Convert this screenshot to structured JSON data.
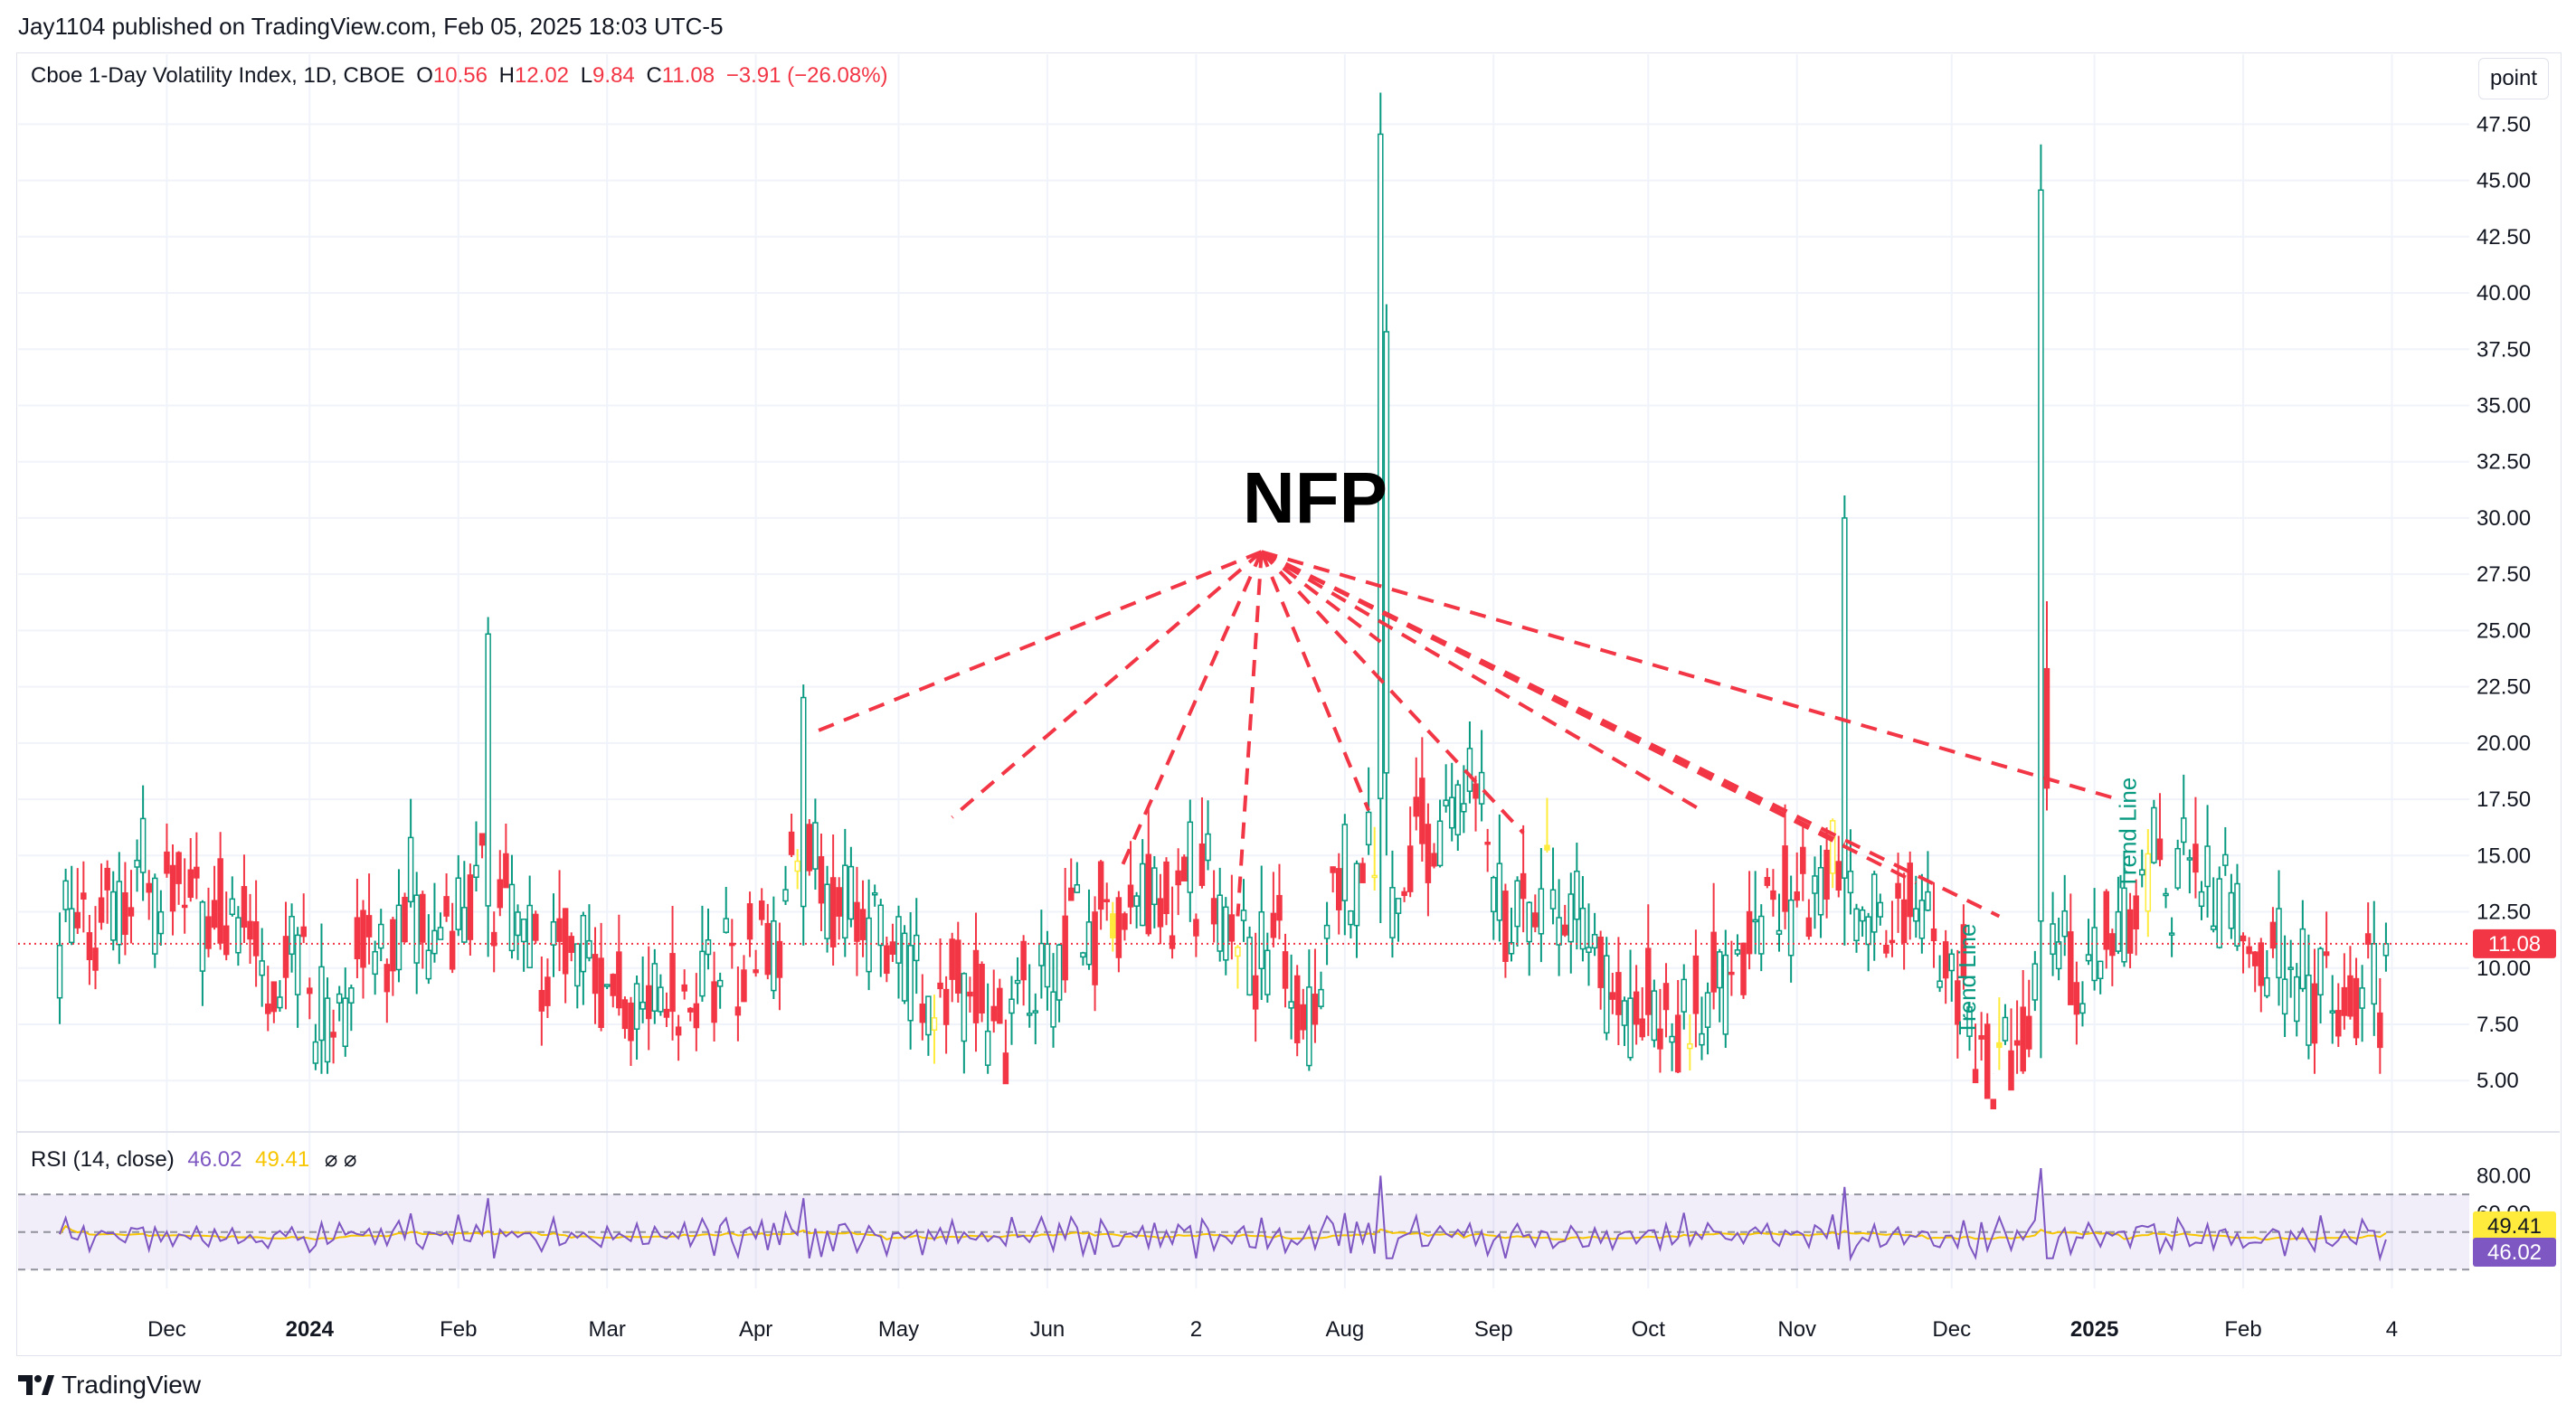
{
  "header": {
    "publisher": "Jay1104 published on TradingView.com, Feb 05, 2025 18:03 UTC-5"
  },
  "legend": {
    "symbol": "Cboe 1-Day Volatility Index, 1D, CBOE",
    "o_label": "O",
    "o_value": "10.56",
    "h_label": "H",
    "h_value": "12.02",
    "l_label": "L",
    "l_value": "9.84",
    "c_label": "C",
    "c_value": "11.08",
    "change": "−3.91 (−26.08%)"
  },
  "unit_button": "point",
  "rsi_legend": {
    "title": "RSI (14, close)",
    "rsi_value": "46.02",
    "ma_value": "49.41",
    "glyphs": "⌀ ⌀"
  },
  "footer": {
    "brand": "TradingView"
  },
  "colors": {
    "up": "#089981",
    "down": "#f23645",
    "highlight": "#ffeb3b",
    "annotation": "#f23645",
    "rsi": "#7e57c2",
    "rsi_ma": "#f7c600",
    "rsi_band": "#7e57c2",
    "grid": "#f0f3fa"
  },
  "chart_data": [
    {
      "type": "candlestick",
      "title": "Cboe 1-Day Volatility Index, 1D, CBOE",
      "ylim": [
        3,
        49
      ],
      "yticks": [
        5.0,
        7.5,
        10.0,
        12.5,
        15.0,
        17.5,
        20.0,
        22.5,
        25.0,
        27.5,
        30.0,
        32.5,
        35.0,
        37.5,
        40.0,
        42.5,
        45.0,
        47.5
      ],
      "x_labels": [
        "Dec",
        "2024",
        "Feb",
        "Mar",
        "Apr",
        "May",
        "Jun",
        "2",
        "Aug",
        "Sep",
        "Oct",
        "Nov",
        "Dec",
        "2025",
        "Feb",
        "4"
      ],
      "x_label_positions": [
        18,
        42,
        67,
        92,
        117,
        141,
        166,
        191,
        216,
        241,
        267,
        292,
        318,
        342,
        367,
        392
      ],
      "x_range": [
        -7,
        405
      ],
      "last_price": "11.08",
      "last_close": 11.08,
      "key_candles": [
        {
          "i": 16,
          "high": 14.2,
          "low": 10.0
        },
        {
          "i": 72,
          "high": 25.6,
          "low": 10.5
        },
        {
          "i": 125,
          "high": 22.6,
          "low": 11.0
        },
        {
          "i": 222,
          "high": 48.9,
          "low": 12.0
        },
        {
          "i": 223,
          "high": 39.5,
          "low": 15.0
        },
        {
          "i": 300,
          "high": 31.0,
          "low": 11.0
        },
        {
          "i": 333,
          "high": 46.6,
          "low": 6.0
        },
        {
          "i": 334,
          "high": 26.3,
          "low": 17.0
        }
      ],
      "yellow_candles": [
        124,
        147,
        177,
        198,
        221,
        250,
        274,
        298,
        326,
        351
      ],
      "annotations": [
        {
          "type": "text",
          "text": "NFP",
          "x": 211,
          "y": 29.8
        },
        {
          "type": "text",
          "text": "Trend Line",
          "x": 322,
          "y": 9.5,
          "rotation": -90
        },
        {
          "type": "text",
          "text": "Trend Line",
          "x": 349,
          "y": 16.0,
          "rotation": -90
        },
        {
          "type": "dashed-lines",
          "from": {
            "x": 202,
            "y": 28.5
          },
          "to": [
            {
              "x": 127,
              "y": 20.5
            },
            {
              "x": 150,
              "y": 16.7
            },
            {
              "x": 178,
              "y": 14.2
            },
            {
              "x": 198,
              "y": 12.3
            },
            {
              "x": 220,
              "y": 17.0
            },
            {
              "x": 222,
              "y": 24.5
            },
            {
              "x": 246,
              "y": 16.0
            },
            {
              "x": 258,
              "y": 21.0
            },
            {
              "x": 276,
              "y": 17.0
            },
            {
              "x": 300,
              "y": 15.5
            },
            {
              "x": 312,
              "y": 13.8
            },
            {
              "x": 326,
              "y": 12.3
            },
            {
              "x": 346,
              "y": 17.5
            }
          ]
        }
      ]
    },
    {
      "type": "line",
      "title": "RSI (14, close)",
      "ylim": [
        20,
        85
      ],
      "yticks": [
        40.0,
        60.0,
        80.0
      ],
      "bands": [
        30,
        70
      ],
      "series": [
        {
          "name": "RSI",
          "last": 46.02
        },
        {
          "name": "MA",
          "last": 49.41
        }
      ],
      "peaks": [
        {
          "i": 222,
          "value": 80
        },
        {
          "i": 300,
          "value": 74
        },
        {
          "i": 333,
          "value": 84
        }
      ]
    }
  ]
}
